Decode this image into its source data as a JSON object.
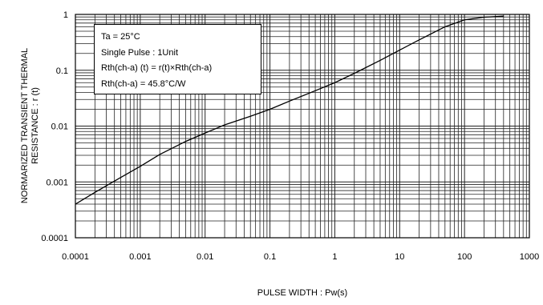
{
  "chart_data": {
    "type": "line",
    "xlabel": "PULSE WIDTH : Pw(s)",
    "ylabel_line1": "NORMARIZED TRANSIENT THERMAL",
    "ylabel_line2": "RESISTANCE : r (t)",
    "x_scale": "log",
    "y_scale": "log",
    "xlim": [
      0.0001,
      1000
    ],
    "ylim": [
      0.0001,
      1
    ],
    "x_ticks": [
      "0.0001",
      "0.001",
      "0.01",
      "0.1",
      "1",
      "10",
      "100",
      "1000"
    ],
    "y_ticks": [
      "1",
      "0.1",
      "0.01",
      "0.001",
      "0.0001"
    ],
    "grid": true,
    "legend_position": "top-left",
    "annotations": {
      "line1": "Ta = 25°C",
      "line2": "Single Pulse : 1Unit",
      "line3": "Rth(ch-a) (t) = r(t)×Rth(ch-a)",
      "line4": "Rth(ch-a) = 45.8°C/W"
    },
    "series": [
      {
        "x": [
          0.0001,
          0.0002,
          0.0005,
          0.001,
          0.002,
          0.005,
          0.01,
          0.02,
          0.05,
          0.1,
          0.2,
          0.5,
          1,
          2,
          5,
          10,
          20,
          50,
          100,
          200,
          400
        ],
        "y": [
          0.0004,
          0.00065,
          0.0012,
          0.0019,
          0.0031,
          0.0053,
          0.0075,
          0.0105,
          0.015,
          0.02,
          0.028,
          0.043,
          0.06,
          0.088,
          0.15,
          0.23,
          0.35,
          0.6,
          0.8,
          0.89,
          0.93
        ]
      }
    ]
  }
}
